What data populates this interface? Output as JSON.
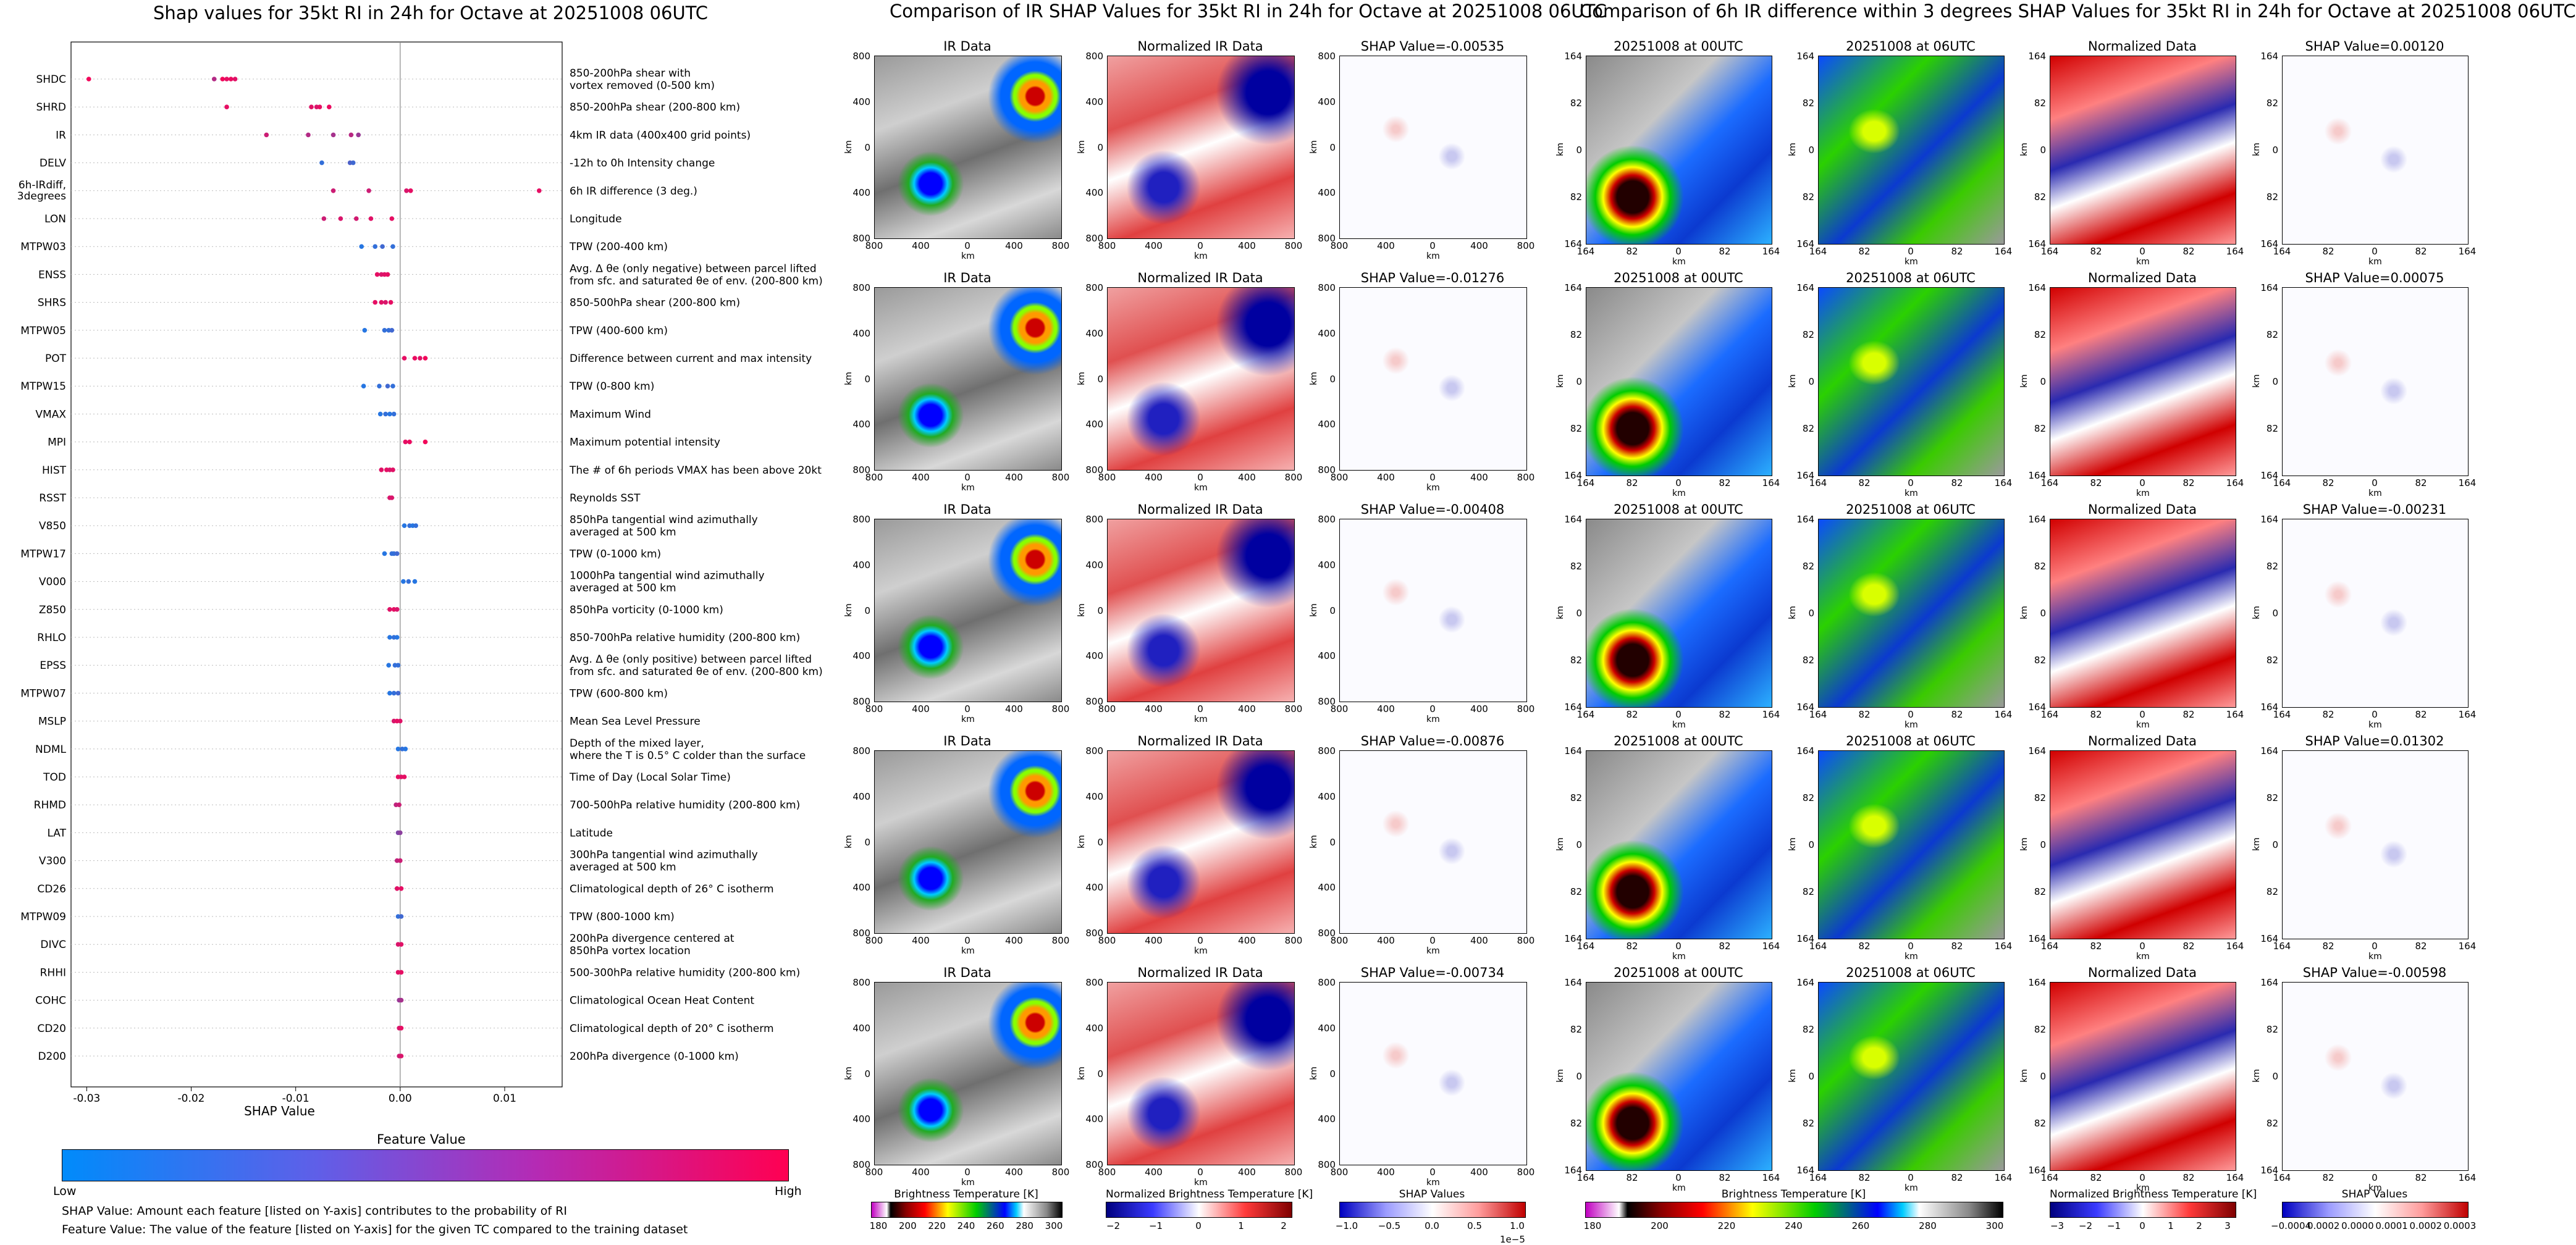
{
  "chart_data": [
    {
      "type": "scatter",
      "title": "Shap values for 35kt RI in 24h for Octave at 20251008 06UTC",
      "xlabel": "SHAP Value",
      "xlim": [
        -0.0315,
        0.0155
      ],
      "xticks": [
        "-0.03",
        "-0.02",
        "-0.01",
        "0.00",
        "0.01"
      ],
      "xtick_values": [
        -0.03,
        -0.02,
        -0.01,
        0.0,
        0.01
      ],
      "grid": false,
      "legend_title": "Feature Value",
      "colorbar_low": "Low",
      "colorbar_high": "High",
      "features": [
        {
          "name": "SHDC",
          "description": "850-200hPa shear with\nvortex removed (0-500 km)",
          "points": [
            [
              -0.0298,
              0.95
            ],
            [
              -0.0178,
              0.7
            ],
            [
              -0.017,
              0.95
            ],
            [
              -0.0166,
              0.9
            ],
            [
              -0.0162,
              0.92
            ],
            [
              -0.0158,
              0.88
            ]
          ]
        },
        {
          "name": "SHRD",
          "description": "850-200hPa shear (200-800 km)",
          "points": [
            [
              -0.0166,
              0.9
            ],
            [
              -0.0085,
              0.88
            ],
            [
              -0.008,
              0.85
            ],
            [
              -0.0077,
              0.9
            ],
            [
              -0.0068,
              0.92
            ]
          ]
        },
        {
          "name": "IR",
          "description": "4km IR data (400x400 grid points)",
          "points": [
            [
              -0.0128,
              0.8
            ],
            [
              -0.0088,
              0.7
            ],
            [
              -0.0064,
              0.65
            ],
            [
              -0.0047,
              0.72
            ],
            [
              -0.004,
              0.6
            ]
          ]
        },
        {
          "name": "DELV",
          "description": "-12h to 0h Intensity change",
          "points": [
            [
              -0.0075,
              0.2
            ],
            [
              -0.0048,
              0.3
            ],
            [
              -0.0045,
              0.25
            ]
          ]
        },
        {
          "name": "6h-IRdiff, 3degrees",
          "description": "6h IR difference (3 deg.)",
          "points": [
            [
              -0.0064,
              0.8
            ],
            [
              -0.003,
              0.8
            ],
            [
              0.0006,
              0.85
            ],
            [
              0.001,
              0.9
            ],
            [
              0.0133,
              0.9
            ]
          ]
        },
        {
          "name": "LON",
          "description": "Longitude",
          "points": [
            [
              -0.0073,
              0.8
            ],
            [
              -0.0057,
              0.85
            ],
            [
              -0.0042,
              0.82
            ],
            [
              -0.0028,
              0.88
            ],
            [
              -0.0008,
              0.9
            ]
          ]
        },
        {
          "name": "MTPW03",
          "description": "TPW (200-400 km)",
          "points": [
            [
              -0.0037,
              0.15
            ],
            [
              -0.0024,
              0.2
            ],
            [
              -0.0017,
              0.25
            ],
            [
              -0.0007,
              0.2
            ]
          ]
        },
        {
          "name": "ENSS",
          "description": "Avg. Δ θe (only negative) between parcel lifted\nfrom sfc. and saturated θe of env. (200-800 km)",
          "points": [
            [
              -0.0022,
              0.9
            ],
            [
              -0.0018,
              0.85
            ],
            [
              -0.0015,
              0.88
            ],
            [
              -0.0012,
              0.9
            ]
          ]
        },
        {
          "name": "SHRS",
          "description": "850-500hPa shear (200-800 km)",
          "points": [
            [
              -0.0024,
              0.9
            ],
            [
              -0.0018,
              0.88
            ],
            [
              -0.0014,
              0.85
            ],
            [
              -0.0009,
              0.9
            ]
          ]
        },
        {
          "name": "MTPW05",
          "description": "TPW (400-600 km)",
          "points": [
            [
              -0.0034,
              0.15
            ],
            [
              -0.0015,
              0.2
            ],
            [
              -0.0011,
              0.2
            ],
            [
              -0.0008,
              0.25
            ]
          ]
        },
        {
          "name": "POT",
          "description": "Difference between current and max intensity",
          "points": [
            [
              0.0004,
              0.9
            ],
            [
              0.0014,
              0.92
            ],
            [
              0.0019,
              0.88
            ],
            [
              0.0024,
              0.95
            ]
          ]
        },
        {
          "name": "MTPW15",
          "description": "TPW (0-800 km)",
          "points": [
            [
              -0.0035,
              0.15
            ],
            [
              -0.002,
              0.2
            ],
            [
              -0.0012,
              0.25
            ],
            [
              -0.0007,
              0.2
            ]
          ]
        },
        {
          "name": "VMAX",
          "description": "Maximum Wind",
          "points": [
            [
              -0.0019,
              0.15
            ],
            [
              -0.0014,
              0.2
            ],
            [
              -0.001,
              0.15
            ],
            [
              -0.0006,
              0.2
            ]
          ]
        },
        {
          "name": "MPI",
          "description": "Maximum potential intensity",
          "points": [
            [
              0.0005,
              0.9
            ],
            [
              0.0009,
              0.92
            ],
            [
              0.0024,
              0.95
            ]
          ]
        },
        {
          "name": "HIST",
          "description": "The # of 6h periods VMAX has been above 20kt",
          "points": [
            [
              -0.0018,
              0.88
            ],
            [
              -0.0013,
              0.9
            ],
            [
              -0.001,
              0.85
            ],
            [
              -0.0007,
              0.88
            ]
          ]
        },
        {
          "name": "RSST",
          "description": "Reynolds SST",
          "points": [
            [
              -0.001,
              0.85
            ],
            [
              -0.0008,
              0.85
            ]
          ]
        },
        {
          "name": "V850",
          "description": "850hPa tangential wind azimuthally\naveraged at 500 km",
          "points": [
            [
              0.0004,
              0.15
            ],
            [
              0.0009,
              0.2
            ],
            [
              0.0012,
              0.15
            ],
            [
              0.0015,
              0.2
            ]
          ]
        },
        {
          "name": "MTPW17",
          "description": "TPW (0-1000 km)",
          "points": [
            [
              -0.0015,
              0.15
            ],
            [
              -0.0008,
              0.2
            ],
            [
              -0.0006,
              0.2
            ],
            [
              -0.0003,
              0.25
            ]
          ]
        },
        {
          "name": "V000",
          "description": "1000hPa tangential wind azimuthally\naveraged at 500 km",
          "points": [
            [
              0.0003,
              0.15
            ],
            [
              0.0008,
              0.2
            ],
            [
              0.0014,
              0.15
            ]
          ]
        },
        {
          "name": "Z850",
          "description": "850hPa vorticity (0-1000 km)",
          "points": [
            [
              -0.001,
              0.88
            ],
            [
              -0.0006,
              0.9
            ],
            [
              -0.0003,
              0.85
            ]
          ]
        },
        {
          "name": "RHLO",
          "description": "850-700hPa relative humidity (200-800 km)",
          "points": [
            [
              -0.001,
              0.15
            ],
            [
              -0.0006,
              0.2
            ],
            [
              -0.0003,
              0.15
            ]
          ]
        },
        {
          "name": "EPSS",
          "description": "Avg. Δ θe (only positive) between parcel lifted\nfrom sfc. and saturated θe of env. (200-800 km)",
          "points": [
            [
              -0.0011,
              0.15
            ],
            [
              -0.0005,
              0.2
            ],
            [
              -0.0002,
              0.2
            ]
          ]
        },
        {
          "name": "MTPW07",
          "description": "TPW (600-800 km)",
          "points": [
            [
              -0.001,
              0.15
            ],
            [
              -0.0006,
              0.2
            ],
            [
              -0.0002,
              0.25
            ]
          ]
        },
        {
          "name": "MSLP",
          "description": "Mean Sea Level Pressure",
          "points": [
            [
              -0.0006,
              0.85
            ],
            [
              -0.0003,
              0.9
            ],
            [
              0.0,
              0.88
            ]
          ]
        },
        {
          "name": "NDML",
          "description": "Depth of the mixed layer,\nwhere the T is 0.5° C colder than the surface",
          "points": [
            [
              -0.0002,
              0.15
            ],
            [
              0.0002,
              0.2
            ],
            [
              0.0005,
              0.15
            ]
          ]
        },
        {
          "name": "TOD",
          "description": "Time of Day (Local Solar Time)",
          "points": [
            [
              -0.0002,
              0.9
            ],
            [
              0.0001,
              0.88
            ],
            [
              0.0004,
              0.9
            ]
          ]
        },
        {
          "name": "RHMD",
          "description": "700-500hPa relative humidity (200-800 km)",
          "points": [
            [
              -0.0004,
              0.75
            ],
            [
              -0.0001,
              0.8
            ]
          ]
        },
        {
          "name": "LAT",
          "description": "Latitude",
          "points": [
            [
              -0.0002,
              0.5
            ],
            [
              0.0,
              0.55
            ]
          ]
        },
        {
          "name": "V300",
          "description": "300hPa tangential wind azimuthally\naveraged at 500 km",
          "points": [
            [
              -0.0003,
              0.75
            ],
            [
              0.0,
              0.8
            ]
          ]
        },
        {
          "name": "CD26",
          "description": "Climatological depth of 26° C isotherm",
          "points": [
            [
              -0.0003,
              0.88
            ],
            [
              0.0001,
              0.9
            ]
          ]
        },
        {
          "name": "MTPW09",
          "description": "TPW (800-1000 km)",
          "points": [
            [
              -0.0002,
              0.2
            ],
            [
              0.0001,
              0.25
            ]
          ]
        },
        {
          "name": "DIVC",
          "description": "200hPa divergence centered at\n850hPa vortex location",
          "points": [
            [
              -0.0002,
              0.85
            ],
            [
              0.0001,
              0.88
            ]
          ]
        },
        {
          "name": "RHHI",
          "description": "500-300hPa relative humidity (200-800 km)",
          "points": [
            [
              -0.0002,
              0.88
            ],
            [
              0.0001,
              0.9
            ]
          ]
        },
        {
          "name": "COHC",
          "description": "Climatological Ocean Heat Content",
          "points": [
            [
              -0.0001,
              0.6
            ],
            [
              0.0001,
              0.65
            ]
          ]
        },
        {
          "name": "CD20",
          "description": "Climatological depth of 20° C isotherm",
          "points": [
            [
              -0.0001,
              0.85
            ],
            [
              0.0001,
              0.9
            ]
          ]
        },
        {
          "name": "D200",
          "description": "200hPa divergence (0-1000 km)",
          "points": [
            [
              -0.0001,
              0.8
            ],
            [
              0.0001,
              0.85
            ]
          ]
        }
      ]
    },
    {
      "type": "heatmap",
      "title": "Comparison of IR SHAP Values for 35kt RI in 24h for Octave at 20251008 06UTC",
      "columns": [
        "IR Data",
        "Normalized IR Data"
      ],
      "shap_values": [
        "SHAP Value=-0.00535",
        "SHAP Value=-0.01276",
        "SHAP Value=-0.00408",
        "SHAP Value=-0.00876",
        "SHAP Value=-0.00734"
      ],
      "ticks": [
        "800",
        "400",
        "0",
        "400",
        "800"
      ],
      "axis_label": "km",
      "colorbars": [
        {
          "label": "Brightness Temperature [K]",
          "ticks": [
            "180",
            "200",
            "220",
            "240",
            "260",
            "280",
            "300"
          ]
        },
        {
          "label": "Normalized Brightness Temperature [K]",
          "ticks": [
            "−2",
            "−1",
            "0",
            "1",
            "2"
          ]
        },
        {
          "label": "SHAP Values",
          "ticks": [
            "−1.0",
            "−0.5",
            "0.0",
            "0.5",
            "1.0"
          ],
          "offset": "1e−5"
        }
      ]
    },
    {
      "type": "heatmap",
      "title": "Comparison of 6h IR difference within 3 degrees SHAP Values for 35kt RI in 24h for Octave at 20251008 06UTC",
      "columns": [
        "20251008 at 00UTC",
        "20251008 at 06UTC",
        "Normalized Data"
      ],
      "shap_values": [
        "SHAP Value=0.00120",
        "SHAP Value=0.00075",
        "SHAP Value=-0.00231",
        "SHAP Value=0.01302",
        "SHAP Value=-0.00598"
      ],
      "ticks": [
        "164",
        "82",
        "0",
        "82",
        "164"
      ],
      "axis_label": "km",
      "colorbars": [
        {
          "label": "Brightness Temperature [K]",
          "ticks": [
            "180",
            "200",
            "220",
            "240",
            "260",
            "280",
            "300"
          ]
        },
        {
          "label": "Normalized Brightness Temperature [K]",
          "ticks": [
            "−3",
            "−2",
            "−1",
            "0",
            "1",
            "2",
            "3"
          ]
        },
        {
          "label": "SHAP Values",
          "ticks": [
            "−0.0004",
            "0.0002",
            "0.0000",
            "0.0001",
            "0.0002",
            "0.0003"
          ]
        }
      ]
    }
  ],
  "notes": {
    "shap_definition": "SHAP Value: Amount each feature [listed on Y-axis] contributes to the probability of RI",
    "feature_definition": "Feature Value: The value of the feature [listed on Y-axis] for the given TC compared to the training dataset"
  },
  "colors": {
    "low": "#008bfb",
    "high": "#ff0052",
    "mid": "#8b3fd0"
  }
}
